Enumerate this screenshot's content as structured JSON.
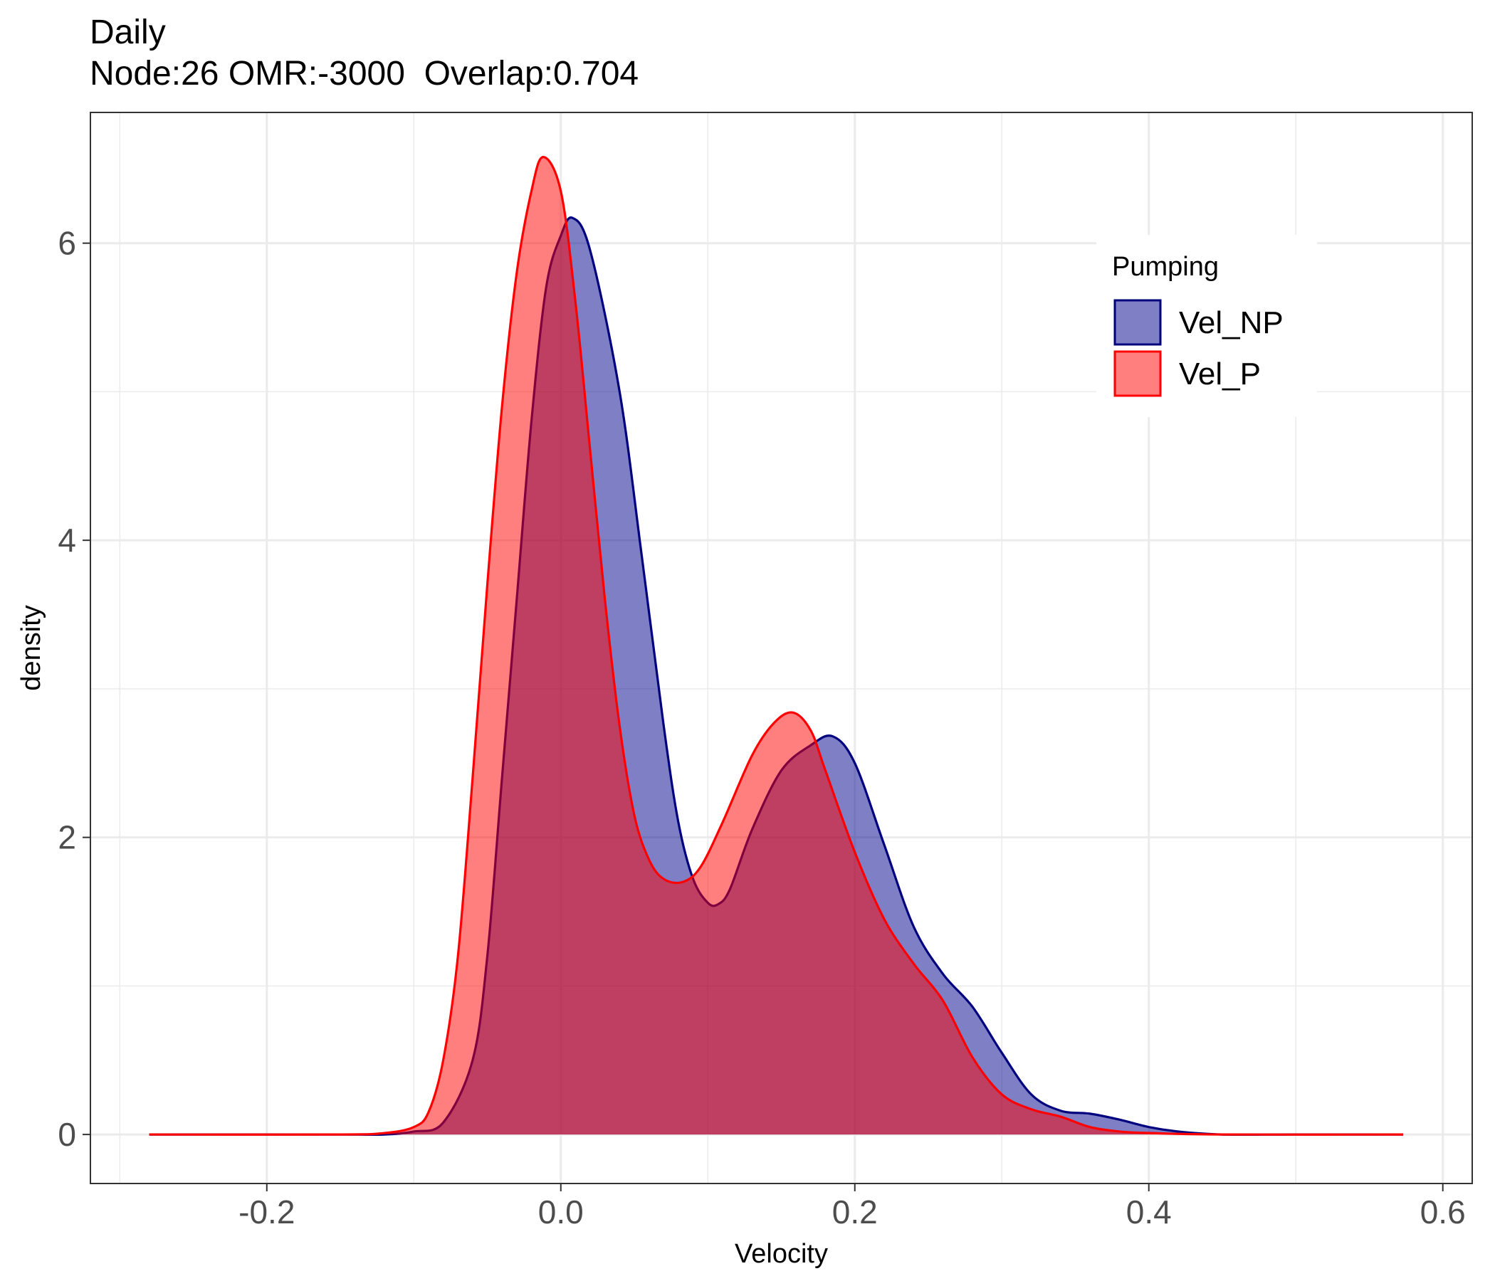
{
  "chart_data": {
    "type": "area",
    "title": "Daily",
    "subtitle": "Node:26 OMR:-3000  Overlap:0.704",
    "xlabel": "Velocity",
    "ylabel": "density",
    "xlim": [
      -0.32,
      0.62
    ],
    "ylim": [
      -0.33,
      6.88
    ],
    "x_ticks": [
      "-0.2",
      "0.0",
      "0.2",
      "0.4",
      "0.6"
    ],
    "x_tick_values": [
      -0.2,
      0.0,
      0.2,
      0.4,
      0.6
    ],
    "y_ticks": [
      "0",
      "2",
      "4",
      "6"
    ],
    "y_tick_values": [
      0,
      2,
      4,
      6
    ],
    "grid": true,
    "legend": {
      "title": "Pumping",
      "position": "top-right"
    },
    "series": [
      {
        "name": "Vel_NP",
        "color": "#00007f",
        "fill": "#00008b",
        "fill_opacity": 0.5,
        "points": [
          [
            -0.28,
            0
          ],
          [
            -0.15,
            0
          ],
          [
            -0.12,
            0.0
          ],
          [
            -0.1,
            0.02
          ],
          [
            -0.08,
            0.08
          ],
          [
            -0.06,
            0.5
          ],
          [
            -0.05,
            1.2
          ],
          [
            -0.04,
            2.4
          ],
          [
            -0.03,
            3.6
          ],
          [
            -0.02,
            4.8
          ],
          [
            -0.01,
            5.7
          ],
          [
            0.0,
            6.05
          ],
          [
            0.008,
            6.17
          ],
          [
            0.02,
            5.95
          ],
          [
            0.04,
            5.0
          ],
          [
            0.055,
            3.9
          ],
          [
            0.07,
            2.75
          ],
          [
            0.08,
            2.1
          ],
          [
            0.09,
            1.72
          ],
          [
            0.1,
            1.56
          ],
          [
            0.107,
            1.55
          ],
          [
            0.115,
            1.65
          ],
          [
            0.13,
            2.05
          ],
          [
            0.15,
            2.45
          ],
          [
            0.17,
            2.62
          ],
          [
            0.185,
            2.68
          ],
          [
            0.2,
            2.5
          ],
          [
            0.22,
            1.95
          ],
          [
            0.24,
            1.4
          ],
          [
            0.26,
            1.08
          ],
          [
            0.28,
            0.86
          ],
          [
            0.3,
            0.55
          ],
          [
            0.32,
            0.27
          ],
          [
            0.34,
            0.16
          ],
          [
            0.36,
            0.14
          ],
          [
            0.38,
            0.1
          ],
          [
            0.4,
            0.05
          ],
          [
            0.42,
            0.02
          ],
          [
            0.45,
            0.0
          ],
          [
            0.5,
            0
          ],
          [
            0.573,
            0
          ]
        ]
      },
      {
        "name": "Vel_P",
        "color": "#ff0000",
        "fill": "#ff0000",
        "fill_opacity": 0.5,
        "points": [
          [
            -0.28,
            0
          ],
          [
            -0.15,
            0
          ],
          [
            -0.12,
            0.01
          ],
          [
            -0.1,
            0.05
          ],
          [
            -0.09,
            0.15
          ],
          [
            -0.08,
            0.5
          ],
          [
            -0.07,
            1.2
          ],
          [
            -0.06,
            2.4
          ],
          [
            -0.05,
            3.7
          ],
          [
            -0.04,
            4.9
          ],
          [
            -0.03,
            5.8
          ],
          [
            -0.02,
            6.35
          ],
          [
            -0.012,
            6.58
          ],
          [
            0.0,
            6.35
          ],
          [
            0.01,
            5.6
          ],
          [
            0.02,
            4.6
          ],
          [
            0.03,
            3.6
          ],
          [
            0.04,
            2.75
          ],
          [
            0.05,
            2.15
          ],
          [
            0.06,
            1.85
          ],
          [
            0.07,
            1.72
          ],
          [
            0.083,
            1.7
          ],
          [
            0.095,
            1.8
          ],
          [
            0.11,
            2.1
          ],
          [
            0.13,
            2.55
          ],
          [
            0.145,
            2.77
          ],
          [
            0.158,
            2.84
          ],
          [
            0.17,
            2.72
          ],
          [
            0.18,
            2.45
          ],
          [
            0.2,
            1.9
          ],
          [
            0.22,
            1.45
          ],
          [
            0.24,
            1.15
          ],
          [
            0.26,
            0.9
          ],
          [
            0.28,
            0.52
          ],
          [
            0.3,
            0.27
          ],
          [
            0.32,
            0.17
          ],
          [
            0.34,
            0.12
          ],
          [
            0.36,
            0.05
          ],
          [
            0.38,
            0.02
          ],
          [
            0.4,
            0.01
          ],
          [
            0.45,
            0.0
          ],
          [
            0.573,
            0
          ]
        ]
      }
    ]
  }
}
